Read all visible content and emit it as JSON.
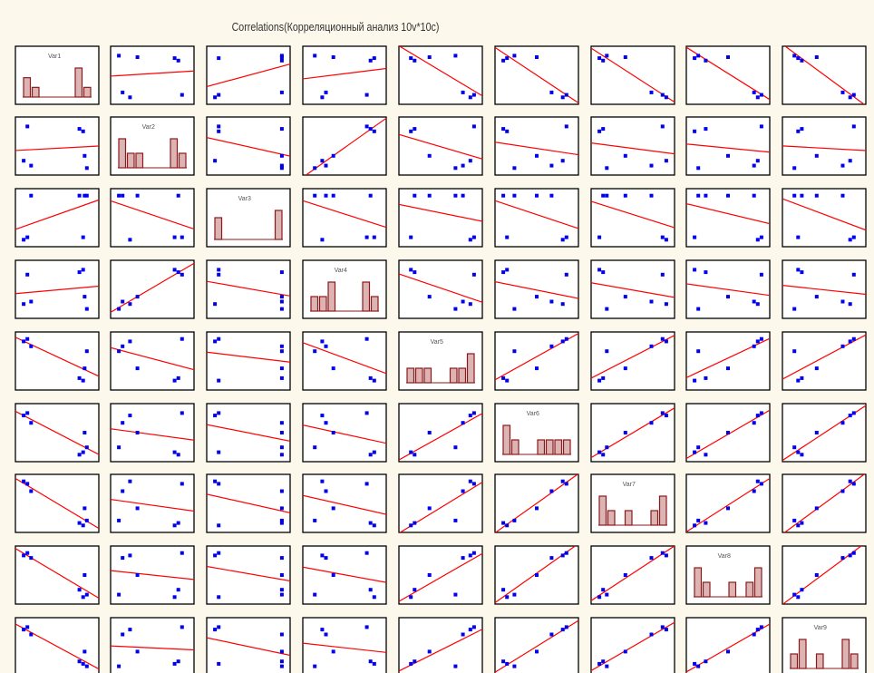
{
  "chart_data": {
    "type": "scatter-matrix",
    "title": "Correlations(Корреляционный анализ 10v*10c)",
    "variables": [
      "Var1",
      "Var2",
      "Var3",
      "Var4",
      "Var5",
      "Var6",
      "Var7",
      "Var8",
      "Var9"
    ],
    "n_cases": 7,
    "values": [
      [
        0.05,
        0.1,
        0.85,
        0.9,
        0.87,
        0.8,
        0.15
      ],
      [
        0.2,
        0.9,
        0.8,
        0.05,
        0.3,
        0.85,
        0.1
      ],
      [
        0.05,
        0.1,
        0.1,
        0.95,
        0.95,
        0.95,
        0.95
      ],
      [
        0.2,
        0.8,
        0.9,
        0.1,
        0.35,
        0.85,
        0.25
      ],
      [
        0.9,
        0.95,
        0.1,
        0.7,
        0.35,
        0.15,
        0.8
      ],
      [
        0.85,
        0.9,
        0.1,
        0.2,
        0.5,
        0.05,
        0.7
      ],
      [
        0.95,
        0.9,
        0.05,
        0.15,
        0.4,
        0.1,
        0.75
      ],
      [
        0.9,
        0.95,
        0.05,
        0.1,
        0.5,
        0.2,
        0.85
      ],
      [
        0.85,
        0.9,
        0.15,
        0.1,
        0.4,
        0.2,
        0.75
      ]
    ],
    "regression_line_color": "#ff0000",
    "point_color": "#0000ee",
    "histogram_fill": "#dcb4b4",
    "histogram_stroke": "#8b1a1a",
    "grid": false
  }
}
